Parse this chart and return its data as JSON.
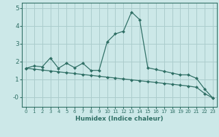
{
  "xlabel": "Humidex (Indice chaleur)",
  "bg_color": "#cce8e8",
  "grid_color": "#aacccc",
  "line_color": "#2e6e64",
  "xlim": [
    -0.5,
    23.5
  ],
  "ylim": [
    -0.55,
    5.3
  ],
  "yticks": [
    0,
    1,
    2,
    3,
    4,
    5
  ],
  "ytick_labels": [
    "-0",
    "1",
    "2",
    "3",
    "4",
    "5"
  ],
  "xticks": [
    0,
    1,
    2,
    3,
    4,
    5,
    6,
    7,
    8,
    9,
    10,
    11,
    12,
    13,
    14,
    15,
    16,
    17,
    18,
    19,
    20,
    21,
    22,
    23
  ],
  "line1_x": [
    0,
    1,
    2,
    3,
    4,
    5,
    6,
    7,
    8,
    9,
    10,
    11,
    12,
    13,
    14,
    15,
    16,
    17,
    18,
    19,
    20,
    21,
    22,
    23
  ],
  "line1_y": [
    1.62,
    1.75,
    1.7,
    2.2,
    1.62,
    1.9,
    1.65,
    1.9,
    1.5,
    1.5,
    3.1,
    3.55,
    3.7,
    4.78,
    4.35,
    1.65,
    1.55,
    1.45,
    1.35,
    1.25,
    1.25,
    1.05,
    0.45,
    -0.05
  ],
  "line2_x": [
    0,
    1,
    2,
    3,
    4,
    5,
    6,
    7,
    8,
    9,
    10,
    11,
    12,
    13,
    14,
    15,
    16,
    17,
    18,
    19,
    20,
    21,
    22,
    23
  ],
  "line2_y": [
    1.62,
    1.57,
    1.52,
    1.47,
    1.42,
    1.37,
    1.32,
    1.27,
    1.22,
    1.17,
    1.12,
    1.07,
    1.02,
    0.97,
    0.92,
    0.87,
    0.82,
    0.77,
    0.72,
    0.67,
    0.62,
    0.55,
    0.2,
    -0.05
  ]
}
